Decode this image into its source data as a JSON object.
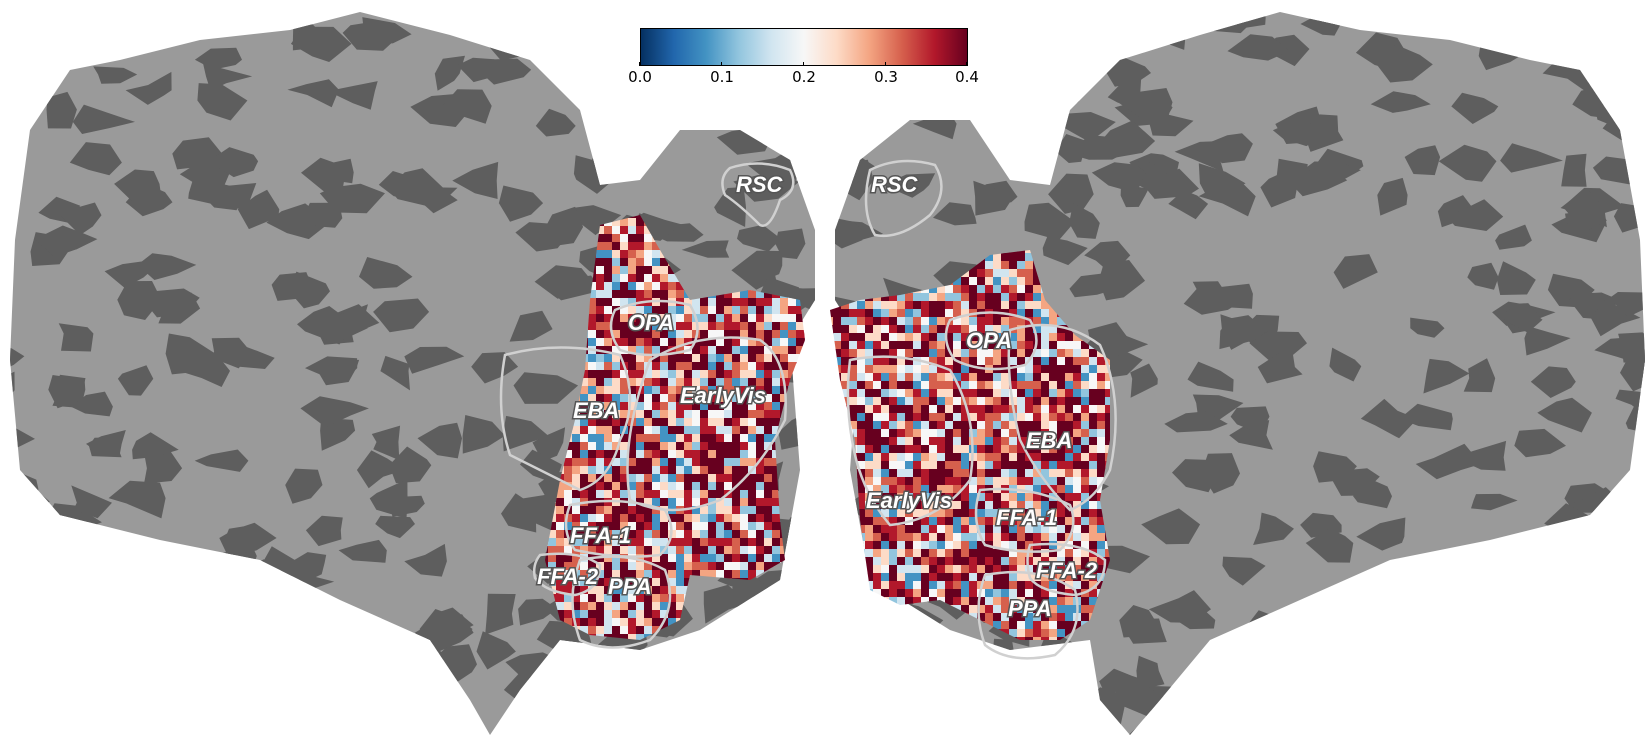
{
  "colorbar": {
    "colormap": "RdBu_r",
    "stops": [
      "#053061",
      "#2166ac",
      "#4393c3",
      "#92c5de",
      "#d1e5f0",
      "#f7f7f7",
      "#fddbc7",
      "#f4a582",
      "#d6604d",
      "#b2182b",
      "#67001f"
    ],
    "ticks": [
      "0.0",
      "0.1",
      "0.2",
      "0.3",
      "0.4"
    ],
    "range": [
      0.0,
      0.4
    ]
  },
  "colors": {
    "sulci": "#5e5e5e",
    "gyri": "#9a9a9a",
    "roi_outline": "#d0d0d0",
    "background": "#ffffff"
  },
  "hemispheres": {
    "left": {
      "rois": [
        {
          "label": "RSC"
        },
        {
          "label": "OPA"
        },
        {
          "label": "EarlyVis"
        },
        {
          "label": "EBA"
        },
        {
          "label": "FFA-1"
        },
        {
          "label": "FFA-2"
        },
        {
          "label": "PPA"
        }
      ]
    },
    "right": {
      "rois": [
        {
          "label": "RSC"
        },
        {
          "label": "OPA"
        },
        {
          "label": "EBA"
        },
        {
          "label": "EarlyVis"
        },
        {
          "label": "FFA-1"
        },
        {
          "label": "FFA-2"
        },
        {
          "label": "PPA"
        }
      ]
    }
  }
}
